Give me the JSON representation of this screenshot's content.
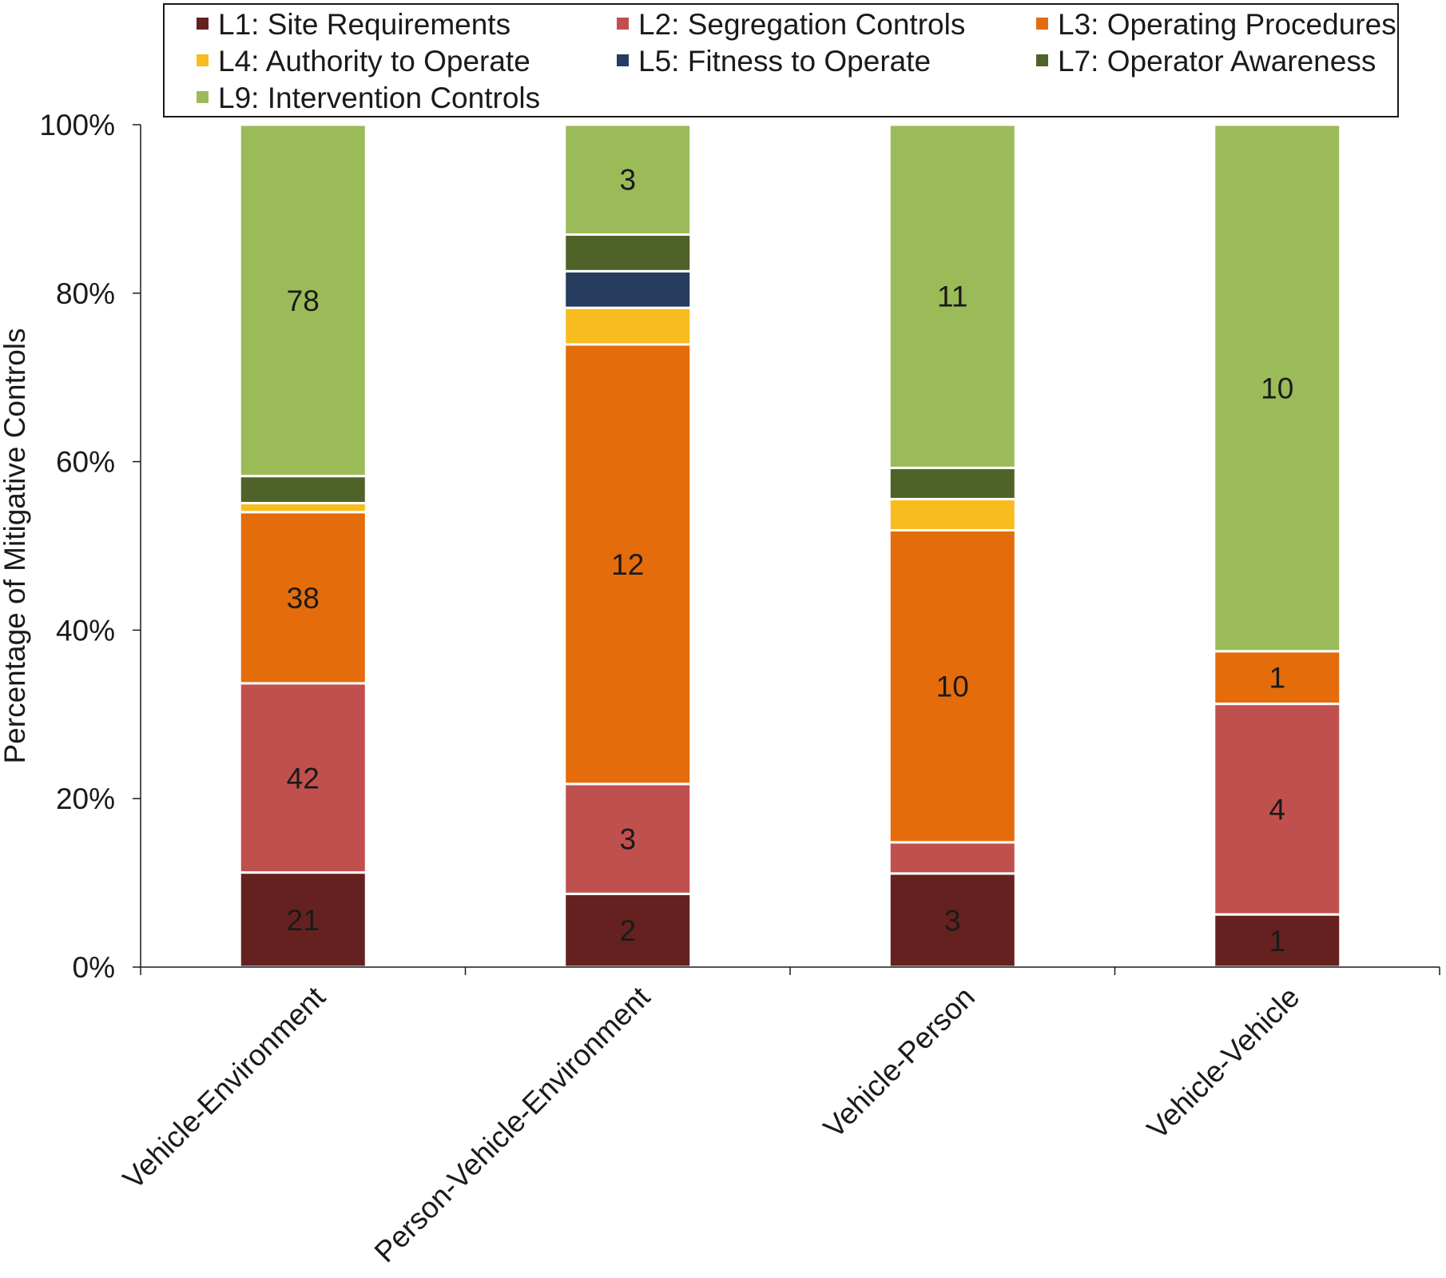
{
  "chart_data": {
    "type": "bar",
    "stacked": true,
    "normalized": true,
    "title": "",
    "xlabel": "",
    "ylabel": "Percentage of Mitigative Controls",
    "ylim": [
      0,
      100
    ],
    "y_ticks": [
      "0%",
      "20%",
      "40%",
      "60%",
      "80%",
      "100%"
    ],
    "legend_position": "top",
    "categories": [
      "Vehicle-Environment",
      "Person-Vehicle-Environment",
      "Vehicle-Person",
      "Vehicle-Vehicle"
    ],
    "series": [
      {
        "name": "L1: Site Requirements",
        "color": "#65211f",
        "values": [
          21,
          2,
          3,
          1
        ],
        "labels": [
          "21",
          "2",
          "3",
          "1"
        ]
      },
      {
        "name": "L2: Segregation Controls",
        "color": "#c0504d",
        "values": [
          42,
          3,
          1,
          4
        ],
        "labels": [
          "42",
          "3",
          "",
          "4"
        ]
      },
      {
        "name": "L3: Operating Procedures",
        "color": "#e46c0a",
        "values": [
          38,
          12,
          10,
          1
        ],
        "labels": [
          "38",
          "12",
          "10",
          "1"
        ]
      },
      {
        "name": "L4: Authority to Operate",
        "color": "#f9bc1e",
        "values": [
          2,
          1,
          1,
          0
        ],
        "labels": [
          "",
          "",
          "",
          ""
        ]
      },
      {
        "name": "L5: Fitness to Operate",
        "color": "#263d5f",
        "values": [
          0,
          1,
          0,
          0
        ],
        "labels": [
          "",
          "",
          "",
          ""
        ]
      },
      {
        "name": "L7: Operator Awareness",
        "color": "#4f6228",
        "values": [
          6,
          1,
          1,
          0
        ],
        "labels": [
          "",
          "",
          "",
          ""
        ]
      },
      {
        "name": "L9: Intervention Controls",
        "color": "#9bbb59",
        "values": [
          78,
          3,
          11,
          10
        ],
        "labels": [
          "78",
          "3",
          "11",
          "10"
        ]
      }
    ]
  }
}
